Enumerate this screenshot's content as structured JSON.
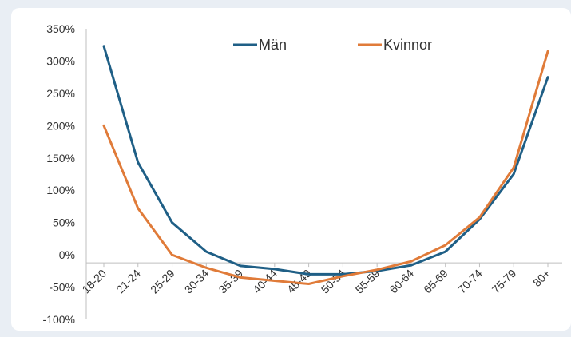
{
  "chart_data": {
    "type": "line",
    "title": "",
    "xlabel": "",
    "ylabel": "",
    "categories": [
      "18-20",
      "21-24",
      "25-29",
      "30-34",
      "35-39",
      "40-44",
      "45-49",
      "50-54",
      "55-59",
      "60-64",
      "65-69",
      "70-74",
      "75-79",
      "80+"
    ],
    "y_ticks": [
      "350%",
      "300%",
      "250%",
      "200%",
      "150%",
      "100%",
      "50%",
      "0%",
      "-50%",
      "-100%"
    ],
    "ylim": [
      -100,
      350
    ],
    "grid": false,
    "legend_position": "top",
    "series": [
      {
        "name": "Män",
        "color": "#1f5f86",
        "values": [
          323,
          143,
          50,
          5,
          -17,
          -22,
          -30,
          -30,
          -25,
          -16,
          5,
          55,
          125,
          275
        ]
      },
      {
        "name": "Kvinnor",
        "color": "#e07b39",
        "values": [
          200,
          72,
          0,
          -20,
          -35,
          -40,
          -45,
          -33,
          -23,
          -10,
          15,
          58,
          135,
          315
        ]
      }
    ]
  }
}
